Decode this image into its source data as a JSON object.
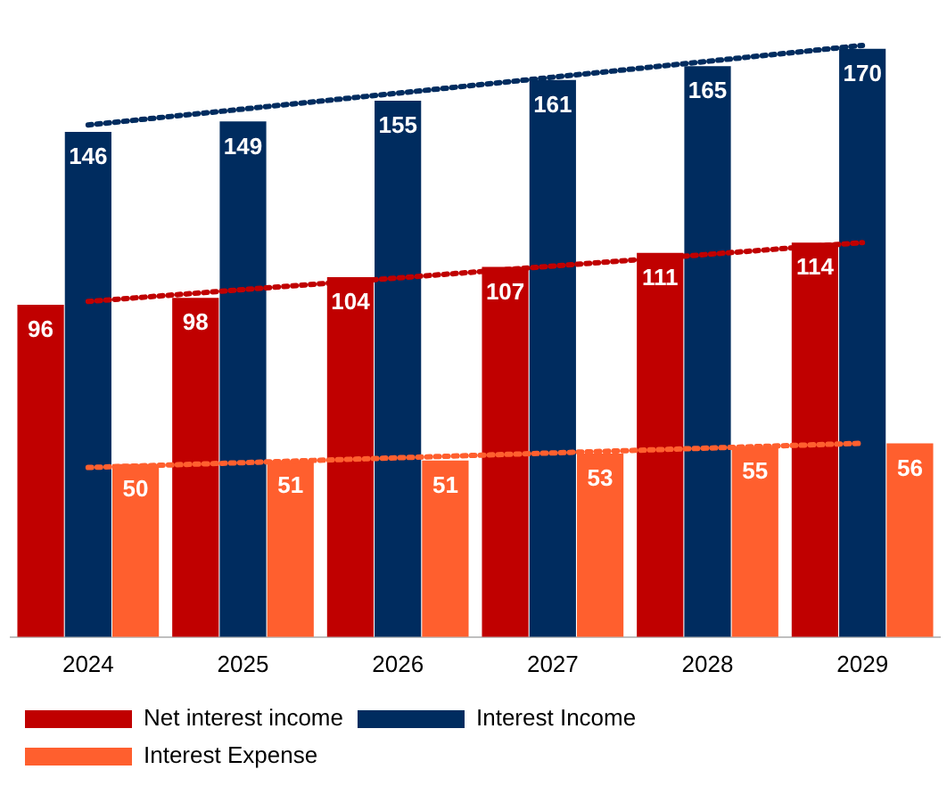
{
  "chart_data": {
    "type": "bar",
    "categories": [
      "2024",
      "2025",
      "2026",
      "2027",
      "2028",
      "2029"
    ],
    "series": [
      {
        "name": "Net interest income",
        "color": "#c00000",
        "values": [
          96,
          98,
          104,
          107,
          111,
          114
        ],
        "value_labels": [
          "96",
          "98",
          "104",
          "107",
          "111",
          "114"
        ]
      },
      {
        "name": "Interest Income",
        "color": "#002c5f",
        "values": [
          146,
          149,
          155,
          161,
          165,
          170
        ],
        "value_labels": [
          "146",
          "149",
          "155",
          "161",
          "165",
          "170"
        ]
      },
      {
        "name": "Interest Expense",
        "color": "#ff5f2e",
        "values": [
          50,
          51,
          51,
          53,
          55,
          56
        ],
        "value_labels": [
          "50",
          "51",
          "51",
          "53",
          "55",
          "56"
        ]
      },
      {
        "type": "line",
        "color": "#002c5f",
        "line_style": "dotted",
        "marker": "none",
        "values": [
          148,
          null,
          null,
          null,
          null,
          171
        ]
      },
      {
        "type": "line",
        "color": "#c00000",
        "line_style": "dotted",
        "marker": "none",
        "values": [
          97,
          null,
          null,
          null,
          null,
          114
        ]
      },
      {
        "type": "line",
        "color": "#ff5f2e",
        "line_style": "dotted",
        "marker": "none",
        "values": [
          49,
          null,
          null,
          null,
          null,
          56
        ]
      }
    ],
    "grid": false,
    "legend": "bottom"
  }
}
